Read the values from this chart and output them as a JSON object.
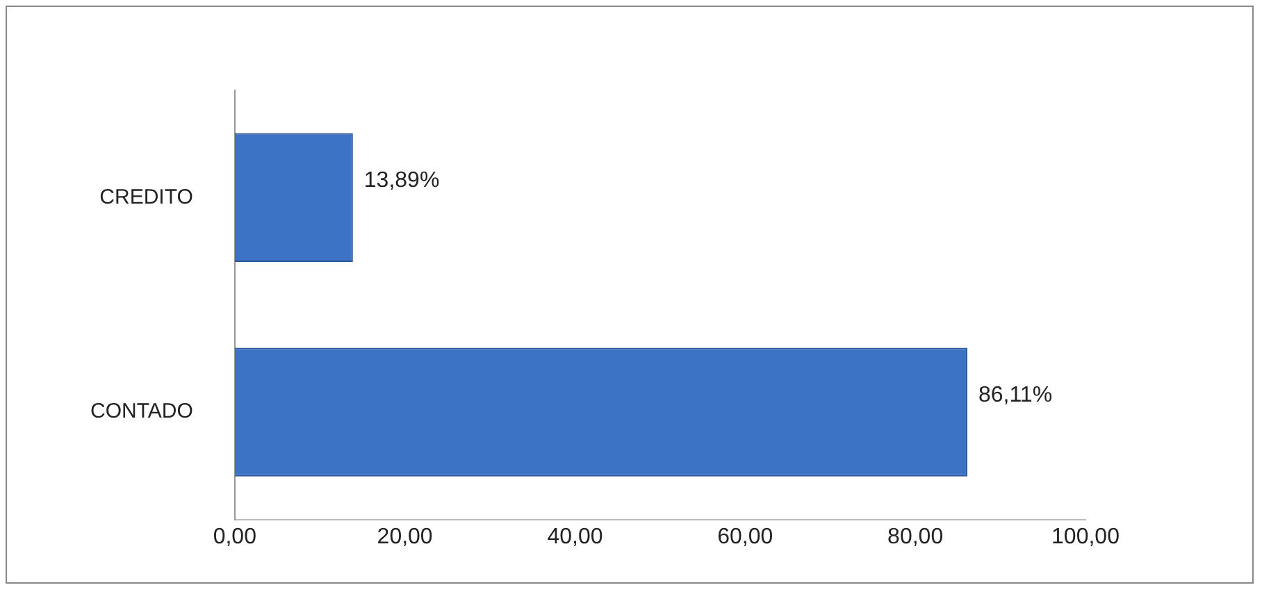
{
  "chart_data": {
    "type": "bar",
    "orientation": "horizontal",
    "categories": [
      "CREDITO",
      "CONTADO"
    ],
    "values": [
      13.89,
      86.11
    ],
    "value_labels": [
      "13,89%",
      "86,11%"
    ],
    "color": "#3c73c4",
    "xlim": [
      0,
      100
    ],
    "xticks": [
      {
        "value": 0,
        "label": "0,00"
      },
      {
        "value": 20,
        "label": "20,00"
      },
      {
        "value": 40,
        "label": "40,00"
      },
      {
        "value": 60,
        "label": "60,00"
      },
      {
        "value": 80,
        "label": "80,00"
      },
      {
        "value": 100,
        "label": "100,00"
      }
    ],
    "grid": false,
    "legend": false
  }
}
